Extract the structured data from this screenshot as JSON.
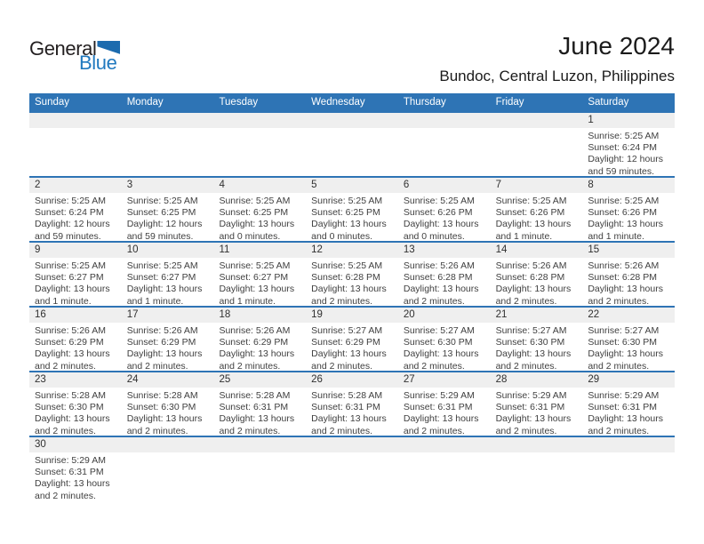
{
  "logo": {
    "text_general": "General",
    "text_blue": "Blue"
  },
  "title": "June 2024",
  "subtitle": "Bundoc, Central Luzon, Philippines",
  "weekdays": [
    "Sunday",
    "Monday",
    "Tuesday",
    "Wednesday",
    "Thursday",
    "Friday",
    "Saturday"
  ],
  "colors": {
    "accent_blue": "#2E74B5",
    "band_gray": "#EFEFEF",
    "logo_triangle_blue": "#1C6BAE",
    "logo_text_blue": "#2079BF"
  },
  "weeks": [
    [
      null,
      null,
      null,
      null,
      null,
      null,
      {
        "day": "1",
        "sunrise": "Sunrise: 5:25 AM",
        "sunset": "Sunset: 6:24 PM",
        "daylight": "Daylight: 12 hours and 59 minutes."
      }
    ],
    [
      {
        "day": "2",
        "sunrise": "Sunrise: 5:25 AM",
        "sunset": "Sunset: 6:24 PM",
        "daylight": "Daylight: 12 hours and 59 minutes."
      },
      {
        "day": "3",
        "sunrise": "Sunrise: 5:25 AM",
        "sunset": "Sunset: 6:25 PM",
        "daylight": "Daylight: 12 hours and 59 minutes."
      },
      {
        "day": "4",
        "sunrise": "Sunrise: 5:25 AM",
        "sunset": "Sunset: 6:25 PM",
        "daylight": "Daylight: 13 hours and 0 minutes."
      },
      {
        "day": "5",
        "sunrise": "Sunrise: 5:25 AM",
        "sunset": "Sunset: 6:25 PM",
        "daylight": "Daylight: 13 hours and 0 minutes."
      },
      {
        "day": "6",
        "sunrise": "Sunrise: 5:25 AM",
        "sunset": "Sunset: 6:26 PM",
        "daylight": "Daylight: 13 hours and 0 minutes."
      },
      {
        "day": "7",
        "sunrise": "Sunrise: 5:25 AM",
        "sunset": "Sunset: 6:26 PM",
        "daylight": "Daylight: 13 hours and 1 minute."
      },
      {
        "day": "8",
        "sunrise": "Sunrise: 5:25 AM",
        "sunset": "Sunset: 6:26 PM",
        "daylight": "Daylight: 13 hours and 1 minute."
      }
    ],
    [
      {
        "day": "9",
        "sunrise": "Sunrise: 5:25 AM",
        "sunset": "Sunset: 6:27 PM",
        "daylight": "Daylight: 13 hours and 1 minute."
      },
      {
        "day": "10",
        "sunrise": "Sunrise: 5:25 AM",
        "sunset": "Sunset: 6:27 PM",
        "daylight": "Daylight: 13 hours and 1 minute."
      },
      {
        "day": "11",
        "sunrise": "Sunrise: 5:25 AM",
        "sunset": "Sunset: 6:27 PM",
        "daylight": "Daylight: 13 hours and 1 minute."
      },
      {
        "day": "12",
        "sunrise": "Sunrise: 5:25 AM",
        "sunset": "Sunset: 6:28 PM",
        "daylight": "Daylight: 13 hours and 2 minutes."
      },
      {
        "day": "13",
        "sunrise": "Sunrise: 5:26 AM",
        "sunset": "Sunset: 6:28 PM",
        "daylight": "Daylight: 13 hours and 2 minutes."
      },
      {
        "day": "14",
        "sunrise": "Sunrise: 5:26 AM",
        "sunset": "Sunset: 6:28 PM",
        "daylight": "Daylight: 13 hours and 2 minutes."
      },
      {
        "day": "15",
        "sunrise": "Sunrise: 5:26 AM",
        "sunset": "Sunset: 6:28 PM",
        "daylight": "Daylight: 13 hours and 2 minutes."
      }
    ],
    [
      {
        "day": "16",
        "sunrise": "Sunrise: 5:26 AM",
        "sunset": "Sunset: 6:29 PM",
        "daylight": "Daylight: 13 hours and 2 minutes."
      },
      {
        "day": "17",
        "sunrise": "Sunrise: 5:26 AM",
        "sunset": "Sunset: 6:29 PM",
        "daylight": "Daylight: 13 hours and 2 minutes."
      },
      {
        "day": "18",
        "sunrise": "Sunrise: 5:26 AM",
        "sunset": "Sunset: 6:29 PM",
        "daylight": "Daylight: 13 hours and 2 minutes."
      },
      {
        "day": "19",
        "sunrise": "Sunrise: 5:27 AM",
        "sunset": "Sunset: 6:29 PM",
        "daylight": "Daylight: 13 hours and 2 minutes."
      },
      {
        "day": "20",
        "sunrise": "Sunrise: 5:27 AM",
        "sunset": "Sunset: 6:30 PM",
        "daylight": "Daylight: 13 hours and 2 minutes."
      },
      {
        "day": "21",
        "sunrise": "Sunrise: 5:27 AM",
        "sunset": "Sunset: 6:30 PM",
        "daylight": "Daylight: 13 hours and 2 minutes."
      },
      {
        "day": "22",
        "sunrise": "Sunrise: 5:27 AM",
        "sunset": "Sunset: 6:30 PM",
        "daylight": "Daylight: 13 hours and 2 minutes."
      }
    ],
    [
      {
        "day": "23",
        "sunrise": "Sunrise: 5:28 AM",
        "sunset": "Sunset: 6:30 PM",
        "daylight": "Daylight: 13 hours and 2 minutes."
      },
      {
        "day": "24",
        "sunrise": "Sunrise: 5:28 AM",
        "sunset": "Sunset: 6:30 PM",
        "daylight": "Daylight: 13 hours and 2 minutes."
      },
      {
        "day": "25",
        "sunrise": "Sunrise: 5:28 AM",
        "sunset": "Sunset: 6:31 PM",
        "daylight": "Daylight: 13 hours and 2 minutes."
      },
      {
        "day": "26",
        "sunrise": "Sunrise: 5:28 AM",
        "sunset": "Sunset: 6:31 PM",
        "daylight": "Daylight: 13 hours and 2 minutes."
      },
      {
        "day": "27",
        "sunrise": "Sunrise: 5:29 AM",
        "sunset": "Sunset: 6:31 PM",
        "daylight": "Daylight: 13 hours and 2 minutes."
      },
      {
        "day": "28",
        "sunrise": "Sunrise: 5:29 AM",
        "sunset": "Sunset: 6:31 PM",
        "daylight": "Daylight: 13 hours and 2 minutes."
      },
      {
        "day": "29",
        "sunrise": "Sunrise: 5:29 AM",
        "sunset": "Sunset: 6:31 PM",
        "daylight": "Daylight: 13 hours and 2 minutes."
      }
    ],
    [
      {
        "day": "30",
        "sunrise": "Sunrise: 5:29 AM",
        "sunset": "Sunset: 6:31 PM",
        "daylight": "Daylight: 13 hours and 2 minutes."
      },
      null,
      null,
      null,
      null,
      null,
      null
    ]
  ]
}
